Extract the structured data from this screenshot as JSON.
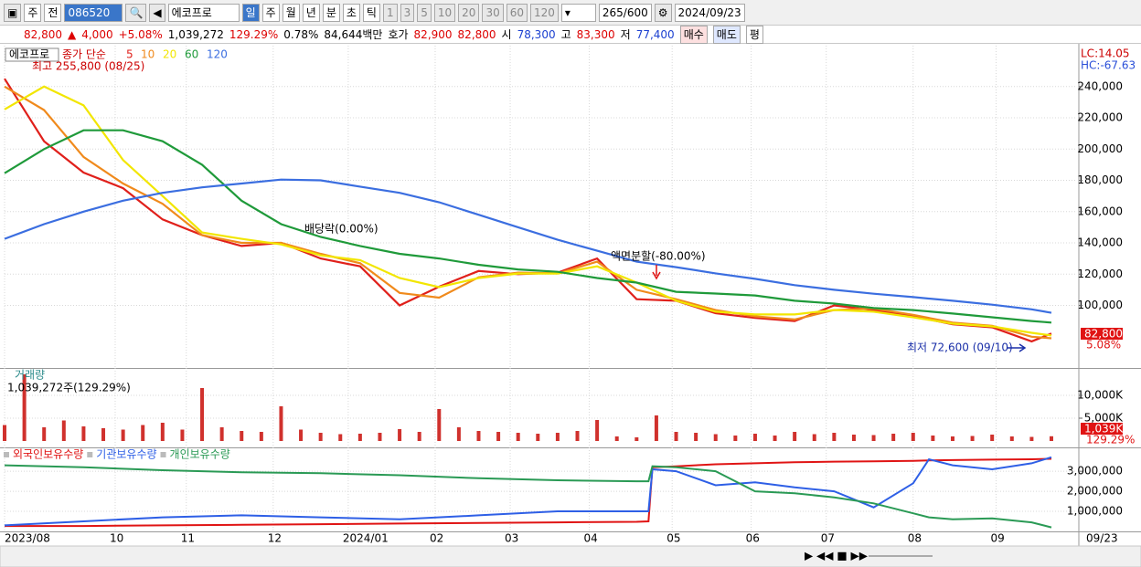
{
  "toolbar": {
    "period_type": "주",
    "prev": "전",
    "code": "086520",
    "name": "에코프로",
    "intervals": [
      "일",
      "주",
      "월",
      "년",
      "분",
      "초",
      "틱"
    ],
    "minutes": [
      "1",
      "3",
      "5",
      "10",
      "20",
      "30",
      "60",
      "120"
    ],
    "count": "265/600",
    "date": "2024/09/23"
  },
  "quote": {
    "price": "82,800",
    "arrow": "▲",
    "change": "4,000",
    "rate": "+5.08%",
    "volume": "1,039,272",
    "volume_rate": "129.29%",
    "turnover": "0.78%",
    "amount": "84,644백만",
    "bid_label": "호가",
    "ask": "82,900",
    "bid": "82,800",
    "open_label": "시",
    "open": "78,300",
    "high_label": "고",
    "high": "83,300",
    "low_label": "저",
    "low": "77,400",
    "buy": "매수",
    "sell": "매도",
    "avg": "평"
  },
  "chart_data": [
    {
      "type": "line",
      "title": "에코프로",
      "legend_title": "종가 단순",
      "indicators": [
        "LC:14.05",
        "HC:-67.63"
      ],
      "price_tag": "82,800",
      "change_tag": "5.08%",
      "x_end_label": "09/23",
      "annotations": [
        "최고 255,800 (08/25)",
        "배당락(0.00%)",
        "액면분할(-80.00%)",
        "최저 72,600 (09/10)"
      ],
      "xlim": [
        0,
        265
      ],
      "xticks": [
        {
          "value": 0,
          "label": "2023/08"
        },
        {
          "value": 28,
          "label": "10"
        },
        {
          "value": 46,
          "label": "11"
        },
        {
          "value": 68,
          "label": "12"
        },
        {
          "value": 87,
          "label": "2024/01"
        },
        {
          "value": 109,
          "label": "02"
        },
        {
          "value": 128,
          "label": "03"
        },
        {
          "value": 148,
          "label": "04"
        },
        {
          "value": 169,
          "label": "05"
        },
        {
          "value": 189,
          "label": "06"
        },
        {
          "value": 208,
          "label": "07"
        },
        {
          "value": 230,
          "label": "08"
        },
        {
          "value": 251,
          "label": "09"
        }
      ],
      "ylim": [
        60000,
        265000
      ],
      "yticks": [
        {
          "value": 100000,
          "label": "100,000"
        },
        {
          "value": 120000,
          "label": "120,000"
        },
        {
          "value": 140000,
          "label": "140,000"
        },
        {
          "value": 160000,
          "label": "160,000"
        },
        {
          "value": 180000,
          "label": "180,000"
        },
        {
          "value": 200000,
          "label": "200,000"
        },
        {
          "value": 220000,
          "label": "220,000"
        },
        {
          "value": 240000,
          "label": "240,000"
        }
      ],
      "grid": true,
      "x": [
        0,
        10,
        20,
        30,
        40,
        50,
        60,
        70,
        80,
        90,
        100,
        110,
        120,
        130,
        140,
        150,
        160,
        170,
        180,
        190,
        200,
        210,
        220,
        230,
        240,
        250,
        260,
        265
      ],
      "series": [
        {
          "name": "5",
          "color": "#e0201b",
          "values": [
            245000,
            205000,
            185000,
            175000,
            155000,
            145000,
            138000,
            140000,
            130000,
            125000,
            100000,
            112000,
            122000,
            120000,
            121000,
            130000,
            104000,
            103000,
            95000,
            92000,
            90000,
            100000,
            97000,
            93000,
            88000,
            86000,
            77000,
            82000
          ]
        },
        {
          "name": "10",
          "color": "#f08a1c",
          "values": [
            240000,
            225000,
            195000,
            178000,
            165000,
            145000,
            140000,
            140000,
            133000,
            127000,
            108000,
            105000,
            118000,
            121000,
            120500,
            128000,
            110000,
            104000,
            97000,
            93000,
            91000,
            97000,
            98000,
            94000,
            89000,
            87000,
            80000,
            79000
          ]
        },
        {
          "name": "20",
          "color": "#f2e600",
          "values": [
            225400,
            240000,
            228000,
            193000,
            170000,
            146700,
            142600,
            139000,
            132000,
            129000,
            117500,
            111700,
            117500,
            120400,
            120400,
            125000,
            114600,
            103000,
            96000,
            94200,
            94200,
            97100,
            96000,
            92400,
            88300,
            86600,
            82500,
            80800
          ]
        },
        {
          "name": "60",
          "color": "#1f9a3a",
          "values": [
            184600,
            200000,
            212000,
            212000,
            205000,
            190000,
            167000,
            152000,
            143800,
            138000,
            133000,
            130000,
            126000,
            123000,
            121500,
            117500,
            114600,
            108700,
            107600,
            106400,
            103000,
            101200,
            98300,
            97000,
            94800,
            92400,
            90000,
            89000
          ]
        },
        {
          "name": "120",
          "color": "#3b6ee0",
          "values": [
            142600,
            152000,
            160000,
            167000,
            172000,
            175500,
            178000,
            180500,
            180000,
            176000,
            172000,
            166000,
            158000,
            150000,
            142000,
            135000,
            128000,
            124500,
            120500,
            117000,
            113000,
            110000,
            107500,
            105300,
            103000,
            100500,
            97500,
            95300
          ]
        }
      ]
    },
    {
      "type": "bar",
      "title": "거래량",
      "subtitle": "1,039,272주(129.29%)",
      "value_tag": "1,039K",
      "rate_tag": "129.29%",
      "color": "#d0312d",
      "ylim": [
        0,
        15600000
      ],
      "yticks": [
        {
          "value": 5000000,
          "label": "5,000K"
        },
        {
          "value": 10000000,
          "label": "10,000K"
        }
      ],
      "x": [
        0,
        5,
        10,
        15,
        20,
        25,
        30,
        35,
        40,
        45,
        50,
        55,
        60,
        65,
        70,
        75,
        80,
        85,
        90,
        95,
        100,
        105,
        110,
        115,
        120,
        125,
        130,
        135,
        140,
        145,
        150,
        155,
        160,
        165,
        170,
        175,
        180,
        185,
        190,
        195,
        200,
        205,
        210,
        215,
        220,
        225,
        230,
        235,
        240,
        245,
        250,
        255,
        260,
        265
      ],
      "values": [
        3500000,
        14600000,
        3000000,
        4500000,
        3200000,
        2800000,
        2500000,
        3500000,
        4000000,
        2500000,
        11600000,
        3000000,
        2200000,
        2000000,
        7600000,
        2500000,
        1800000,
        1500000,
        1600000,
        1800000,
        2600000,
        2000000,
        7000000,
        3000000,
        2200000,
        2000000,
        1800000,
        1600000,
        1800000,
        2200000,
        4600000,
        1000000,
        800000,
        5600000,
        2000000,
        1800000,
        1500000,
        1200000,
        1600000,
        1200000,
        2000000,
        1500000,
        1800000,
        1400000,
        1300000,
        1600000,
        1800000,
        1200000,
        1000000,
        1100000,
        1400000,
        1000000,
        900000,
        1039272
      ]
    },
    {
      "type": "line",
      "ylim": [
        0,
        4100000
      ],
      "yticks": [
        {
          "value": 1000000,
          "label": "1,000,000"
        },
        {
          "value": 2000000,
          "label": "2,000,000"
        },
        {
          "value": 3000000,
          "label": "3,000,000"
        }
      ],
      "x": [
        0,
        20,
        40,
        60,
        80,
        100,
        120,
        140,
        160,
        163,
        164,
        170,
        180,
        190,
        200,
        210,
        220,
        230,
        234,
        240,
        250,
        260,
        265
      ],
      "series": [
        {
          "name": "외국인보유수량",
          "color": "#e01414",
          "values": [
            270000,
            270000,
            300000,
            330000,
            360000,
            390000,
            420000,
            450000,
            480000,
            500000,
            3200000,
            3250000,
            3350000,
            3400000,
            3450000,
            3480000,
            3500000,
            3520000,
            3540000,
            3560000,
            3580000,
            3600000,
            3620000
          ]
        },
        {
          "name": "기관보유수량",
          "color": "#2e5fe6",
          "values": [
            300000,
            500000,
            700000,
            800000,
            700000,
            600000,
            800000,
            1000000,
            1000000,
            1000000,
            3100000,
            3000000,
            2300000,
            2450000,
            2200000,
            2000000,
            1200000,
            2400000,
            3600000,
            3300000,
            3100000,
            3400000,
            3700000
          ]
        },
        {
          "name": "개인보유수량",
          "color": "#2a9a55",
          "values": [
            3300000,
            3200000,
            3050000,
            2950000,
            2900000,
            2800000,
            2650000,
            2550000,
            2500000,
            2500000,
            3250000,
            3200000,
            3000000,
            2000000,
            1900000,
            1700000,
            1400000,
            900000,
            700000,
            600000,
            650000,
            450000,
            200000
          ]
        }
      ]
    }
  ]
}
